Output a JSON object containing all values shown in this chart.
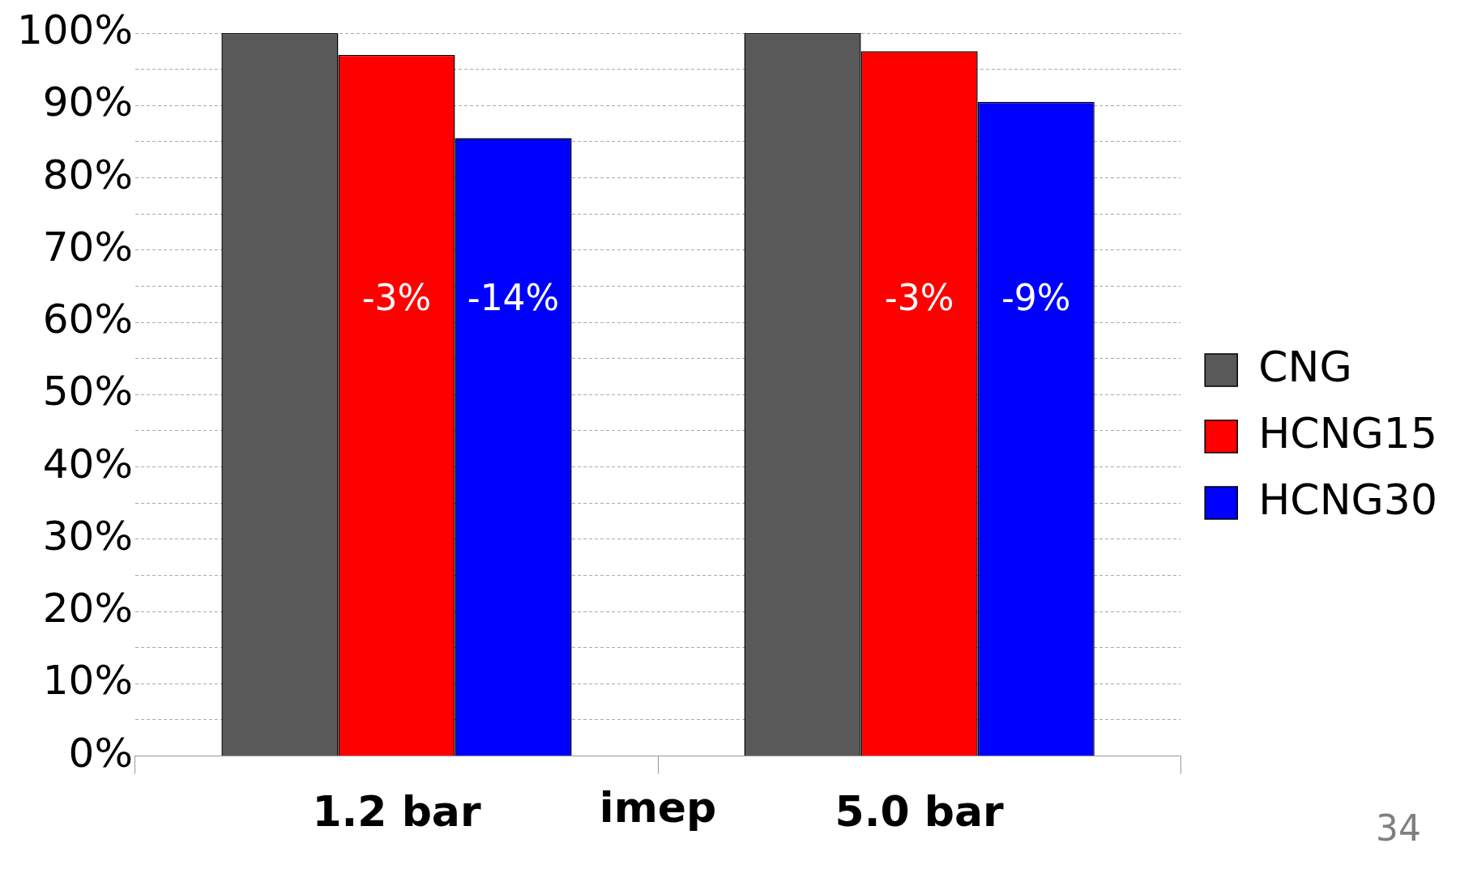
{
  "chart_data": {
    "type": "bar",
    "categories": [
      "1.2 bar",
      "5.0 bar"
    ],
    "xlabel": "imep",
    "series": [
      {
        "name": "CNG",
        "color": "#595959",
        "values": [
          100,
          100
        ]
      },
      {
        "name": "HCNG15",
        "color": "#ff0000",
        "values": [
          97,
          97.5
        ]
      },
      {
        "name": "HCNG30",
        "color": "#0000ff",
        "values": [
          85.5,
          90.5
        ]
      }
    ],
    "ylim": [
      0,
      100
    ],
    "yticks": [
      {
        "value": 0,
        "label": "0%"
      },
      {
        "value": 5,
        "label": null
      },
      {
        "value": 10,
        "label": "10%"
      },
      {
        "value": 15,
        "label": null
      },
      {
        "value": 20,
        "label": "20%"
      },
      {
        "value": 25,
        "label": null
      },
      {
        "value": 30,
        "label": "30%"
      },
      {
        "value": 35,
        "label": null
      },
      {
        "value": 40,
        "label": "40%"
      },
      {
        "value": 45,
        "label": null
      },
      {
        "value": 50,
        "label": "50%"
      },
      {
        "value": 55,
        "label": null
      },
      {
        "value": 60,
        "label": "60%"
      },
      {
        "value": 65,
        "label": null
      },
      {
        "value": 70,
        "label": "70%"
      },
      {
        "value": 75,
        "label": null
      },
      {
        "value": 80,
        "label": "80%"
      },
      {
        "value": 85,
        "label": null
      },
      {
        "value": 90,
        "label": "90%"
      },
      {
        "value": 95,
        "label": null
      },
      {
        "value": 100,
        "label": "100%"
      }
    ],
    "grid": "y",
    "line_style": "dashed",
    "legend": "right",
    "annotations": [
      "-3%",
      "-14%",
      "-3%",
      "-9%",
      "34"
    ]
  }
}
